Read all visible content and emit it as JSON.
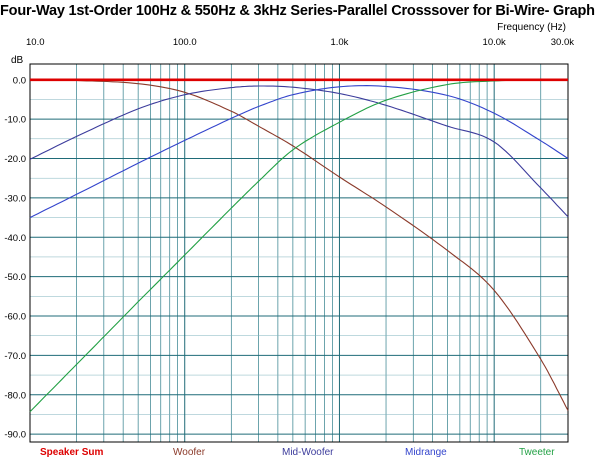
{
  "chart_data": {
    "type": "line",
    "title": "Four-Way 1st-Order 100Hz & 550Hz & 3kHz Series-Parallel Crosssover for Bi-Wire- Graph",
    "xlabel": "Frequency  (Hz)",
    "ylabel": "dB",
    "x_scale": "log",
    "xlim": [
      10,
      30000
    ],
    "ylim": [
      -92,
      4
    ],
    "grid": true,
    "x_tick_labels": [
      "10.0",
      "100.0",
      "1.0k",
      "10.0k",
      "30.0k"
    ],
    "x_tick_values": [
      10,
      100,
      1000,
      10000,
      30000
    ],
    "y_tick_labels": [
      "0.0",
      "-10.0",
      "-20.0",
      "-30.0",
      "-40.0",
      "-50.0",
      "-60.0",
      "-70.0",
      "-80.0",
      "-90.0"
    ],
    "y_tick_values": [
      0,
      -10,
      -20,
      -30,
      -40,
      -50,
      -60,
      -70,
      -80,
      -90
    ],
    "x": [
      10,
      20,
      50,
      100,
      200,
      300,
      500,
      1000,
      2000,
      5000,
      10000,
      20000,
      30000
    ],
    "series": [
      {
        "name": "Speaker Sum",
        "color": "#dd0000",
        "values": [
          0,
          0,
          0,
          0,
          0,
          0,
          0,
          0,
          0,
          0,
          0,
          0,
          0
        ]
      },
      {
        "name": "Woofer",
        "color": "#8b3a2a",
        "values": [
          -0.05,
          -0.2,
          -1.0,
          -3.2,
          -8.0,
          -11.8,
          -16.8,
          -24.7,
          -32.3,
          -43.4,
          -53.5,
          -71.0,
          -84.0
        ]
      },
      {
        "name": "Mid-Woofer",
        "color": "#3c3c9c",
        "values": [
          -20.2,
          -14.4,
          -7.4,
          -3.8,
          -2.0,
          -1.6,
          -1.9,
          -3.5,
          -6.5,
          -11.8,
          -15.8,
          -27.5,
          -34.8
        ]
      },
      {
        "name": "Midrange",
        "color": "#3344cc",
        "values": [
          -35.0,
          -29.1,
          -21.2,
          -15.4,
          -9.8,
          -6.8,
          -3.8,
          -1.8,
          -1.7,
          -4.0,
          -8.5,
          -15.5,
          -20.0
        ]
      },
      {
        "name": "Tweeter",
        "color": "#22a044",
        "values": [
          -84.3,
          -72.3,
          -56.4,
          -44.5,
          -32.6,
          -25.8,
          -17.8,
          -10.8,
          -5.2,
          -1.2,
          -0.3,
          -0.08,
          0
        ]
      }
    ]
  }
}
